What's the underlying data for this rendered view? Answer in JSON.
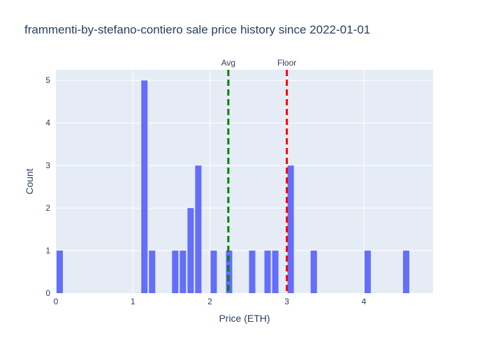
{
  "chart_data": {
    "type": "bar",
    "title": "frammenti-by-stefano-contiero sale price history since 2022-01-01",
    "xlabel": "Price (ETH)",
    "ylabel": "Count",
    "xlim": [
      0,
      4.9
    ],
    "ylim": [
      0,
      5.25
    ],
    "bin_width": 0.1,
    "x_ticks": [
      0,
      1,
      2,
      3,
      4
    ],
    "y_ticks": [
      0,
      1,
      2,
      3,
      4,
      5
    ],
    "bars": [
      {
        "x0": 0.0,
        "x1": 0.1,
        "count": 1
      },
      {
        "x0": 1.1,
        "x1": 1.2,
        "count": 5
      },
      {
        "x0": 1.2,
        "x1": 1.3,
        "count": 1
      },
      {
        "x0": 1.5,
        "x1": 1.6,
        "count": 1
      },
      {
        "x0": 1.6,
        "x1": 1.7,
        "count": 1
      },
      {
        "x0": 1.7,
        "x1": 1.8,
        "count": 2
      },
      {
        "x0": 1.8,
        "x1": 1.9,
        "count": 3
      },
      {
        "x0": 2.0,
        "x1": 2.1,
        "count": 1
      },
      {
        "x0": 2.2,
        "x1": 2.3,
        "count": 1
      },
      {
        "x0": 2.5,
        "x1": 2.6,
        "count": 1
      },
      {
        "x0": 2.7,
        "x1": 2.8,
        "count": 1
      },
      {
        "x0": 2.8,
        "x1": 2.9,
        "count": 1
      },
      {
        "x0": 3.0,
        "x1": 3.1,
        "count": 3
      },
      {
        "x0": 3.3,
        "x1": 3.4,
        "count": 1
      },
      {
        "x0": 4.0,
        "x1": 4.1,
        "count": 1
      },
      {
        "x0": 4.5,
        "x1": 4.6,
        "count": 1
      }
    ],
    "reference_lines": [
      {
        "label": "Avg",
        "x": 2.24,
        "color": "#008000"
      },
      {
        "label": "Floor",
        "x": 3.0,
        "color": "#ff0000"
      }
    ],
    "bar_color": "#636efa",
    "plot_bg": "#e5ecf6",
    "grid": true
  }
}
